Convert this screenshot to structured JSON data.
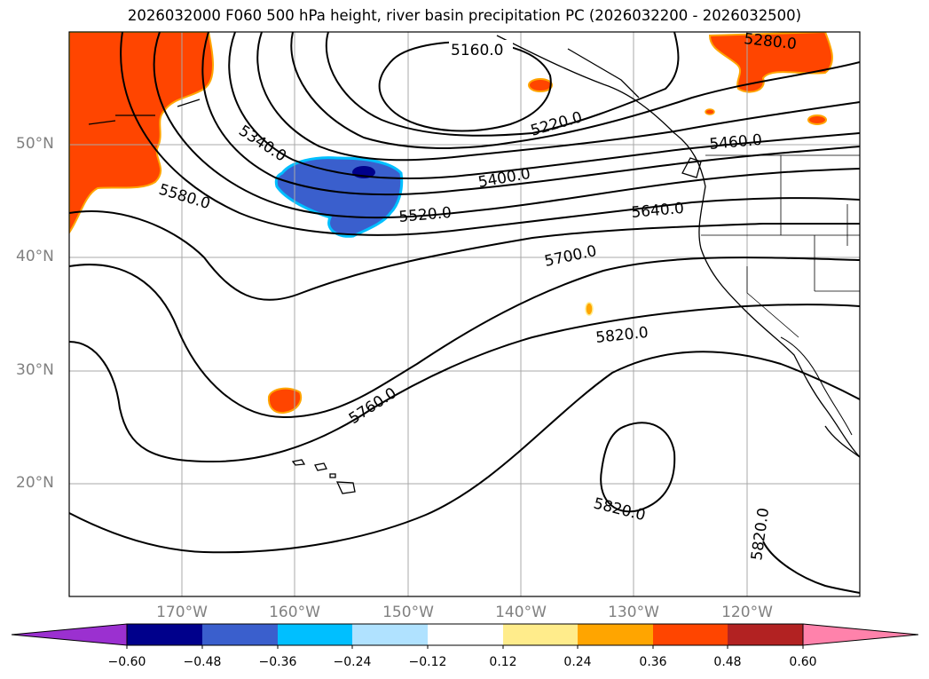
{
  "title": "2026032000 F060 500 hPa height, river basin precipitation PC (2026032200 - 2026032500)",
  "lat_labels": [
    "50°N",
    "40°N",
    "30°N",
    "20°N"
  ],
  "lon_labels": [
    "170°W",
    "160°W",
    "150°W",
    "140°W",
    "130°W",
    "120°W"
  ],
  "contour_labels": [
    "5160.0",
    "5220.0",
    "5280.0",
    "5340.0",
    "5400.0",
    "5460.0",
    "5520.0",
    "5580.0",
    "5640.0",
    "5700.0",
    "5760.0",
    "5820.0",
    "5820.0",
    "5820.0"
  ],
  "colorbar": {
    "ticks": [
      "−0.60",
      "−0.48",
      "−0.36",
      "−0.24",
      "−0.12",
      "0.12",
      "0.24",
      "0.36",
      "0.48",
      "0.60"
    ],
    "colors": [
      "#9b30d0",
      "#00008b",
      "#3a5fcd",
      "#00bfff",
      "#b0e2ff",
      "#ffffff",
      "#ffec8b",
      "#ffa500",
      "#ff4500",
      "#b22222",
      "#ff82ab"
    ]
  },
  "colors": {
    "positive_precip": "#ff4500",
    "negative_precip_strong": "#3a5fcd",
    "negative_precip_max": "#00008b",
    "contour": "#000000",
    "gridline": "#a9a9a9"
  }
}
